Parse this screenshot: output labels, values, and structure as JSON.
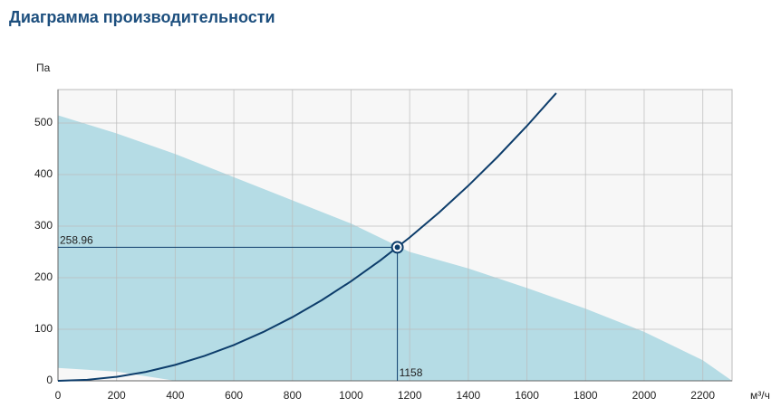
{
  "title": "Диаграмма производительности",
  "chart_data": {
    "type": "performance",
    "y_label": "Па",
    "x_label": "м³/ч",
    "xlim": [
      0,
      2300
    ],
    "ylim": [
      0,
      565
    ],
    "xticks": [
      0,
      200,
      400,
      600,
      800,
      1000,
      1200,
      1400,
      1600,
      1800,
      2000,
      2200
    ],
    "yticks": [
      0,
      100,
      200,
      300,
      400,
      500
    ],
    "grid": true,
    "area": {
      "color": "#add8e2",
      "x": [
        0,
        200,
        400,
        600,
        800,
        1000,
        1200,
        1400,
        1600,
        1800,
        2000,
        2200,
        2300
      ],
      "upper": [
        515,
        480,
        440,
        395,
        350,
        305,
        250,
        218,
        180,
        140,
        95,
        40,
        0
      ],
      "lower": [
        25,
        18,
        0,
        0,
        0,
        0,
        0,
        0,
        0,
        0,
        0,
        0,
        0
      ]
    },
    "curve": {
      "color": "#0d3d6b",
      "x": [
        0,
        100,
        200,
        300,
        400,
        500,
        600,
        700,
        800,
        900,
        1000,
        1100,
        1200,
        1300,
        1400,
        1500,
        1600,
        1700
      ],
      "values": [
        0,
        1.93,
        7.72,
        17.4,
        30.9,
        48.3,
        69.5,
        94.6,
        123.6,
        156.4,
        193.1,
        233.7,
        278.1,
        326.4,
        378.5,
        434.5,
        494.4,
        558.1
      ]
    },
    "point": {
      "x": 1158,
      "y": 258.96,
      "color": "#0d3d6b"
    }
  }
}
